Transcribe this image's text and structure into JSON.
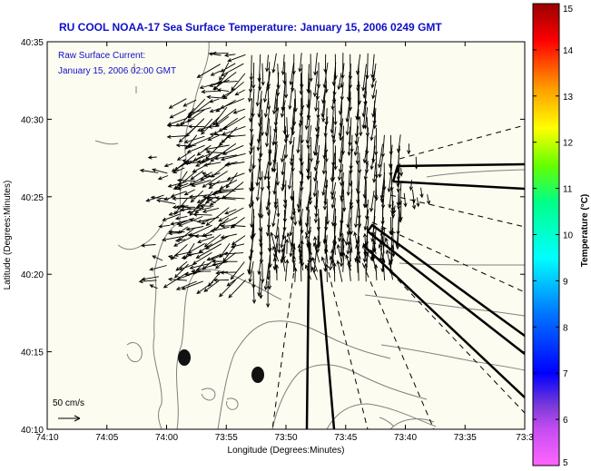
{
  "title": "RU COOL  NOAA-17  Sea Surface Temperature:  January 15, 2006 0249 GMT",
  "current_label": "Raw Surface Current:",
  "current_time": "January 15, 2006 02:00 GMT",
  "scale_label": "50 cm/s",
  "xlabel": "Longitude (Degrees:Minutes)",
  "ylabel": "Latitude (Degrees:Minutes)",
  "colorbar_label": "Temperature (°C)",
  "lon_ticks": [
    "74:10",
    "74:05",
    "74:00",
    "73:55",
    "73:50",
    "73:45",
    "73:40",
    "73:35",
    "73:3"
  ],
  "lat_ticks": [
    "40:35",
    "40:30",
    "40:25",
    "40:20",
    "40:15",
    "40:10"
  ],
  "colorbar_ticks": [
    "15",
    "14",
    "13",
    "12",
    "11",
    "10",
    "9",
    "8",
    "7",
    "6",
    "5"
  ],
  "colorbar_range": [
    5,
    15
  ],
  "colors": {
    "title": "#1010c8",
    "land": "#fdfcf0",
    "colormap": [
      "#ff66ff",
      "#8a2be2",
      "#0000ff",
      "#0099ff",
      "#00ffff",
      "#00ff80",
      "#80ff00",
      "#ffff00",
      "#ff9900",
      "#ff0000",
      "#a00000"
    ]
  }
}
